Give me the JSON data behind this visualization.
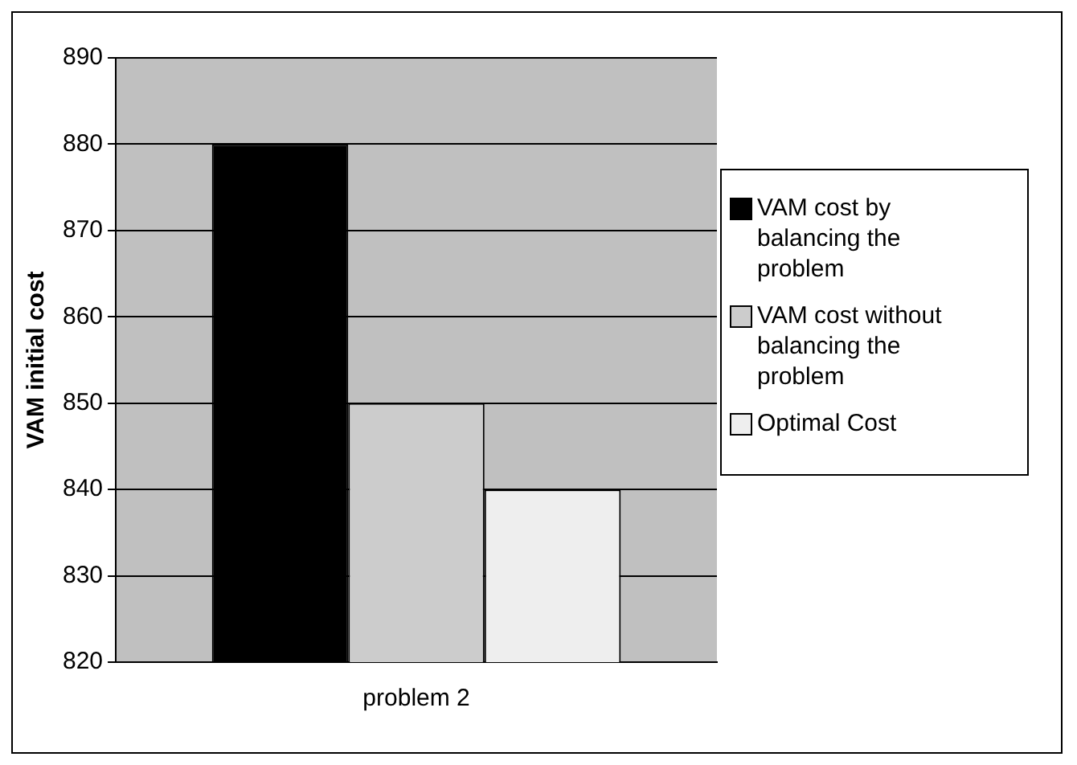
{
  "chart_data": {
    "type": "bar",
    "ylabel": "VAM initial cost",
    "categories": [
      "problem 2"
    ],
    "series": [
      {
        "name": "VAM cost by balancing the problem",
        "color": "#000000",
        "values": [
          880
        ]
      },
      {
        "name": "VAM cost without balancing the problem",
        "color": "#cccccc",
        "values": [
          850
        ]
      },
      {
        "name": "Optimal Cost",
        "color": "#eeeeee",
        "values": [
          840
        ]
      }
    ],
    "ylim": [
      820,
      890
    ],
    "yticks": [
      820,
      830,
      840,
      850,
      860,
      870,
      880,
      890
    ],
    "grid": "y",
    "legend": "right"
  }
}
